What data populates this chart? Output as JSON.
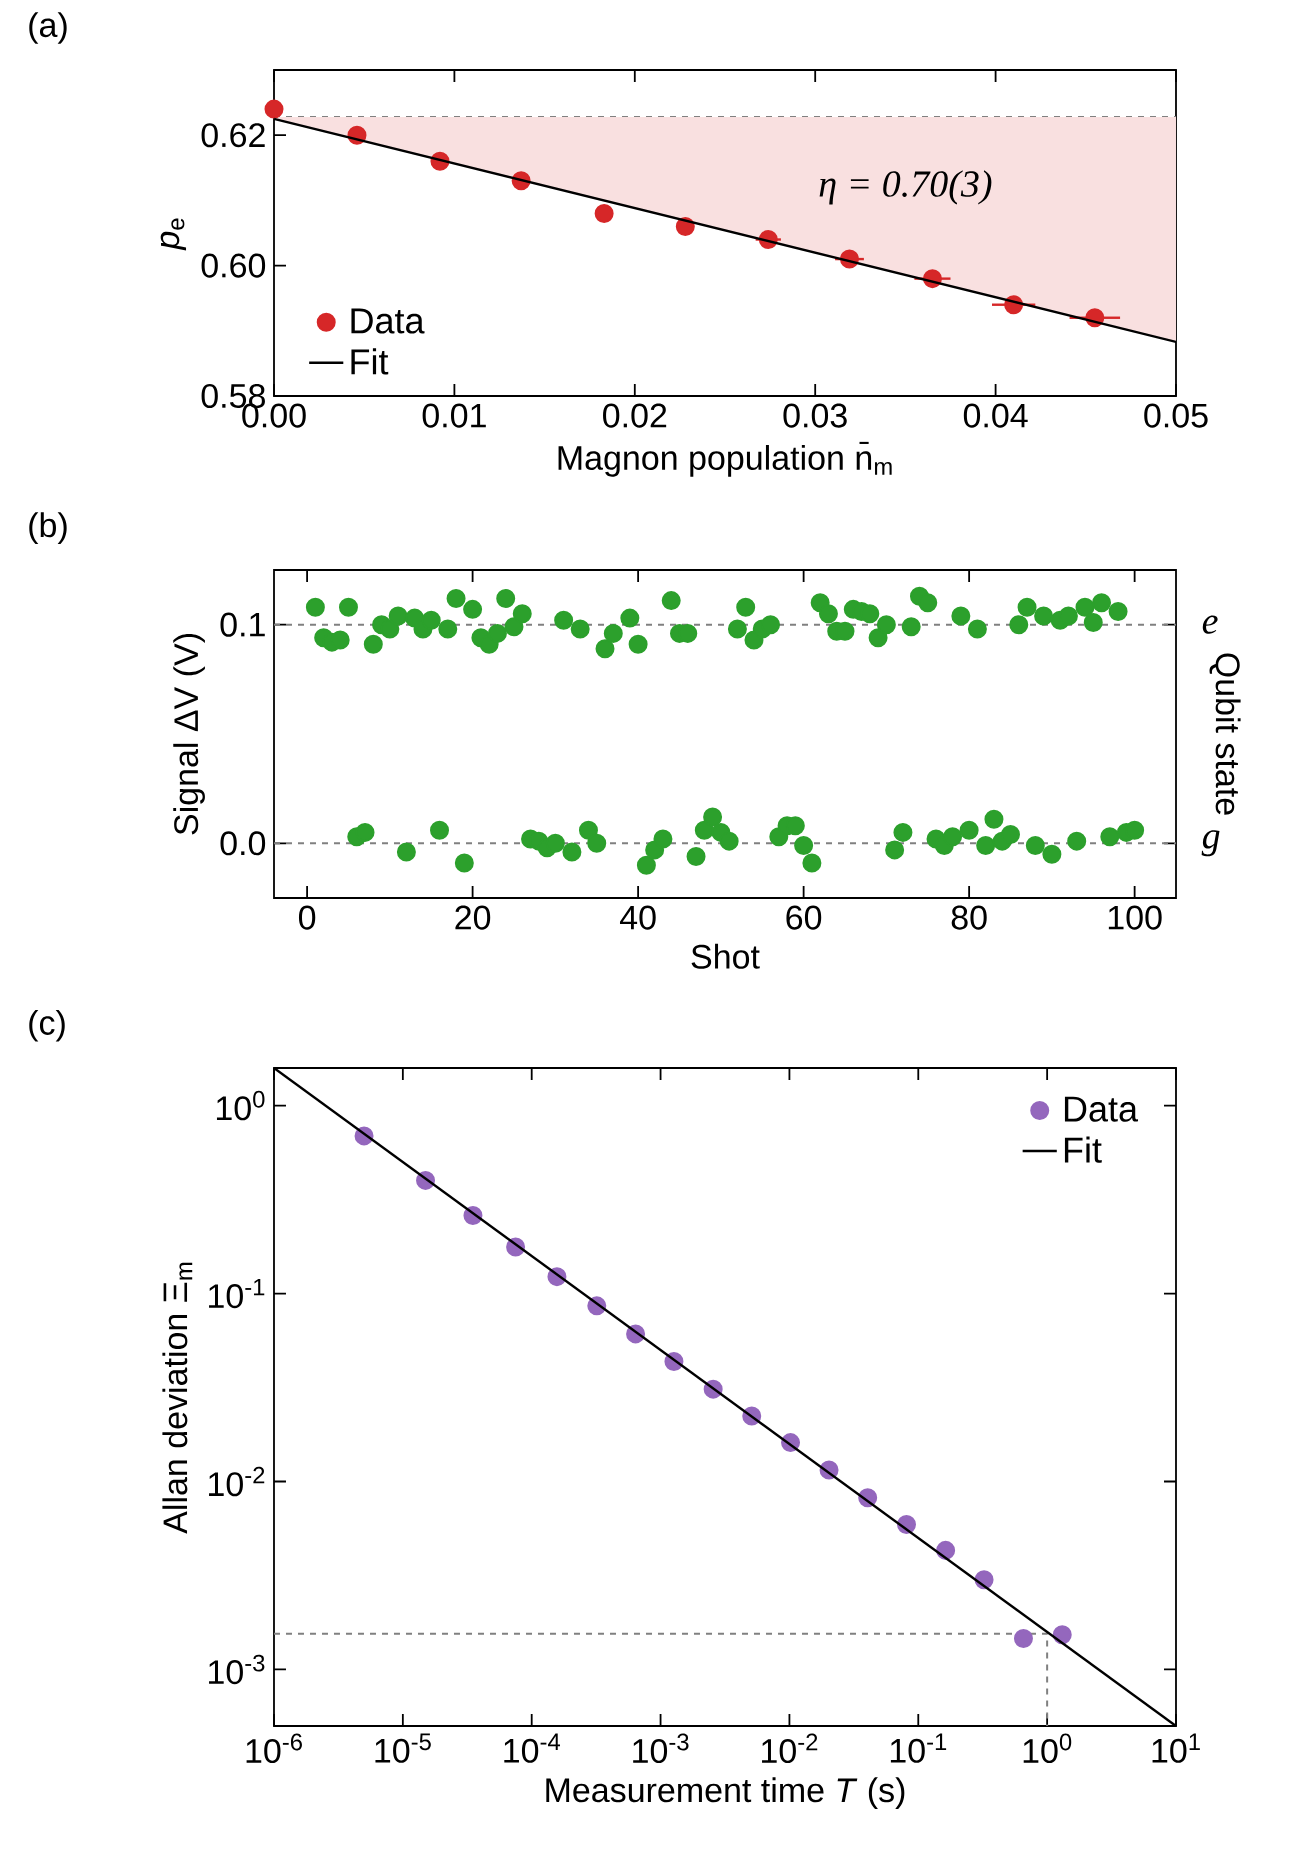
{
  "chart_data": [
    {
      "type": "scatter",
      "title": "(a)",
      "xlabel": "Magnon population n̄$_{m}$",
      "ylabel": "*p*$_{e}$",
      "xlim": [
        0,
        0.05
      ],
      "ylim": [
        0.58,
        0.63
      ],
      "xticks": [
        {
          "value": 0,
          "label": "0.00"
        },
        0.01,
        0.02,
        0.03,
        0.04,
        0.05
      ],
      "yticks": [
        0.58,
        {
          "value": 0.6,
          "label": "0.60"
        },
        0.62
      ],
      "legend": "bottom left",
      "annotations": [
        "η = 0.70(3)"
      ],
      "ref_lines": [
        {
          "axis": "y",
          "value": 0.6228,
          "color": "#808080",
          "line_style": "dashed"
        }
      ],
      "series": [
        {
          "name": "Data",
          "marker": "circle",
          "color": "#d62728",
          "x": [
            0,
            0.0046,
            0.0092,
            0.0137,
            0.0183,
            0.0228,
            0.0274,
            0.0319,
            0.0365,
            0.041,
            0.0455
          ],
          "values": [
            0.624,
            0.62,
            0.616,
            0.613,
            0.608,
            0.606,
            0.604,
            0.601,
            0.598,
            0.594,
            0.592
          ],
          "xerrors": [
            null,
            null,
            null,
            null,
            null,
            null,
            0.0007,
            0.0008,
            0.001,
            0.0012,
            0.0014
          ]
        },
        {
          "name": "Fit",
          "type": "line",
          "color": "#000000",
          "line_style": "solid",
          "x": [
            0,
            0.05
          ],
          "values": [
            0.6225,
            0.5883
          ]
        }
      ]
    },
    {
      "type": "scatter",
      "title": "(b)",
      "xlabel": "Shot",
      "ylabel": "Signal ΔV (V)",
      "y2label": "Qubit state",
      "xlim": [
        -4,
        105
      ],
      "ylim": [
        -0.025,
        0.125
      ],
      "xticks": [
        0,
        20,
        40,
        60,
        80,
        100
      ],
      "yticks": [
        {
          "value": 0,
          "label": "0.0"
        },
        0.1
      ],
      "ref_lines": [
        {
          "axis": "y",
          "value": 0.1,
          "label": "e",
          "color": "#808080",
          "line_style": "dashed"
        },
        {
          "axis": "y",
          "value": 0,
          "label": "g",
          "color": "#808080",
          "line_style": "dashed"
        }
      ],
      "series": [
        {
          "marker": "circle",
          "color": "#2ca02c",
          "x": [
            1,
            2,
            3,
            4,
            5,
            8,
            9,
            10,
            11,
            13,
            14,
            15,
            17,
            18,
            20,
            21,
            22,
            23,
            24,
            25,
            26,
            31,
            33,
            36,
            37,
            39,
            40,
            44,
            45,
            46,
            52,
            53,
            54,
            55,
            56,
            62,
            63,
            64,
            65,
            66,
            67,
            68,
            69,
            70,
            73,
            74,
            75,
            79,
            81,
            86,
            87,
            89,
            91,
            92,
            94,
            95,
            96,
            98,
            6,
            7,
            12,
            16,
            19,
            27,
            28,
            29,
            30,
            32,
            34,
            35,
            41,
            42,
            43,
            47,
            48,
            49,
            50,
            51,
            57,
            58,
            59,
            60,
            61,
            71,
            72,
            76,
            77,
            78,
            80,
            82,
            83,
            84,
            85,
            88,
            90,
            93,
            97,
            99,
            100
          ],
          "values": [
            0.108,
            0.094,
            0.092,
            0.093,
            0.108,
            0.091,
            0.1,
            0.098,
            0.104,
            0.103,
            0.098,
            0.102,
            0.098,
            0.112,
            0.107,
            0.094,
            0.091,
            0.096,
            0.112,
            0.099,
            0.105,
            0.102,
            0.098,
            0.089,
            0.096,
            0.103,
            0.091,
            0.111,
            0.096,
            0.096,
            0.098,
            0.108,
            0.093,
            0.098,
            0.1,
            0.11,
            0.105,
            0.097,
            0.097,
            0.107,
            0.106,
            0.105,
            0.094,
            0.1,
            0.099,
            0.113,
            0.11,
            0.104,
            0.098,
            0.1,
            0.108,
            0.104,
            0.102,
            0.104,
            0.108,
            0.101,
            0.11,
            0.106,
            0.003,
            0.005,
            -0.004,
            0.006,
            -0.009,
            0.002,
            0.001,
            -0.002,
            0.0,
            -0.004,
            0.006,
            0.0,
            -0.01,
            -0.003,
            0.002,
            -0.006,
            0.006,
            0.012,
            0.005,
            0.001,
            0.003,
            0.008,
            0.008,
            -0.001,
            -0.009,
            -0.003,
            0.005,
            0.002,
            -0.001,
            0.003,
            0.006,
            -0.001,
            0.011,
            0.001,
            0.004,
            -0.001,
            -0.005,
            0.001,
            0.003,
            0.005,
            0.006
          ]
        }
      ]
    },
    {
      "type": "scatter",
      "title": "(c)",
      "xlabel": "Measurement time *T* (s)",
      "ylabel": "Allan deviation Ξ$_{m}$",
      "log": "xy",
      "xlim": [
        1e-06,
        10
      ],
      "ylim": [
        0.0005,
        1.585
      ],
      "xticks": [
        {
          "value": 1e-06,
          "label": "10$^{-6}$"
        },
        {
          "value": 1e-05,
          "label": "10$^{-5}$"
        },
        {
          "value": 0.0001,
          "label": "10$^{-4}$"
        },
        {
          "value": 0.001,
          "label": "10$^{-3}$"
        },
        {
          "value": 0.01,
          "label": "10$^{-2}$"
        },
        {
          "value": 0.1,
          "label": "10$^{-1}$"
        },
        {
          "value": 1,
          "label": "10$^{0}$"
        },
        {
          "value": 10,
          "label": "10$^{1}$"
        }
      ],
      "yticks": [
        {
          "value": 0.001,
          "label": "10$^{-3}$"
        },
        {
          "value": 0.01,
          "label": "10$^{-2}$"
        },
        {
          "value": 0.1,
          "label": "10$^{-1}$"
        },
        {
          "value": 1,
          "label": "10$^{0}$"
        }
      ],
      "legend": "top right",
      "series": [
        {
          "type": "line",
          "color": "#808080",
          "line_style": "dashed",
          "x": [
            1e-06,
            1,
            1
          ],
          "values": [
            0.00155,
            0.00155,
            0.0005
          ]
        },
        {
          "name": "Data",
          "marker": "circle",
          "color": "#9467bd",
          "x": [
            5e-06,
            1.5e-05,
            3.5e-05,
            7.5e-05,
            0.000157,
            0.00032,
            0.00064,
            0.00127,
            0.00256,
            0.0051,
            0.0102,
            0.0203,
            0.0405,
            0.081,
            0.163,
            0.324,
            0.655,
            1.31
          ],
          "values": [
            0.69,
            0.4,
            0.26,
            0.177,
            0.123,
            0.086,
            0.061,
            0.0435,
            0.031,
            0.0223,
            0.0161,
            0.0115,
            0.0082,
            0.0059,
            0.0043,
            0.003,
            0.00146,
            0.00153
          ]
        },
        {
          "name": "Fit",
          "type": "line",
          "color": "#000000",
          "line_style": "solid",
          "x": [
            1e-06,
            10
          ],
          "values": [
            1.585,
            0.0005
          ]
        }
      ]
    }
  ]
}
